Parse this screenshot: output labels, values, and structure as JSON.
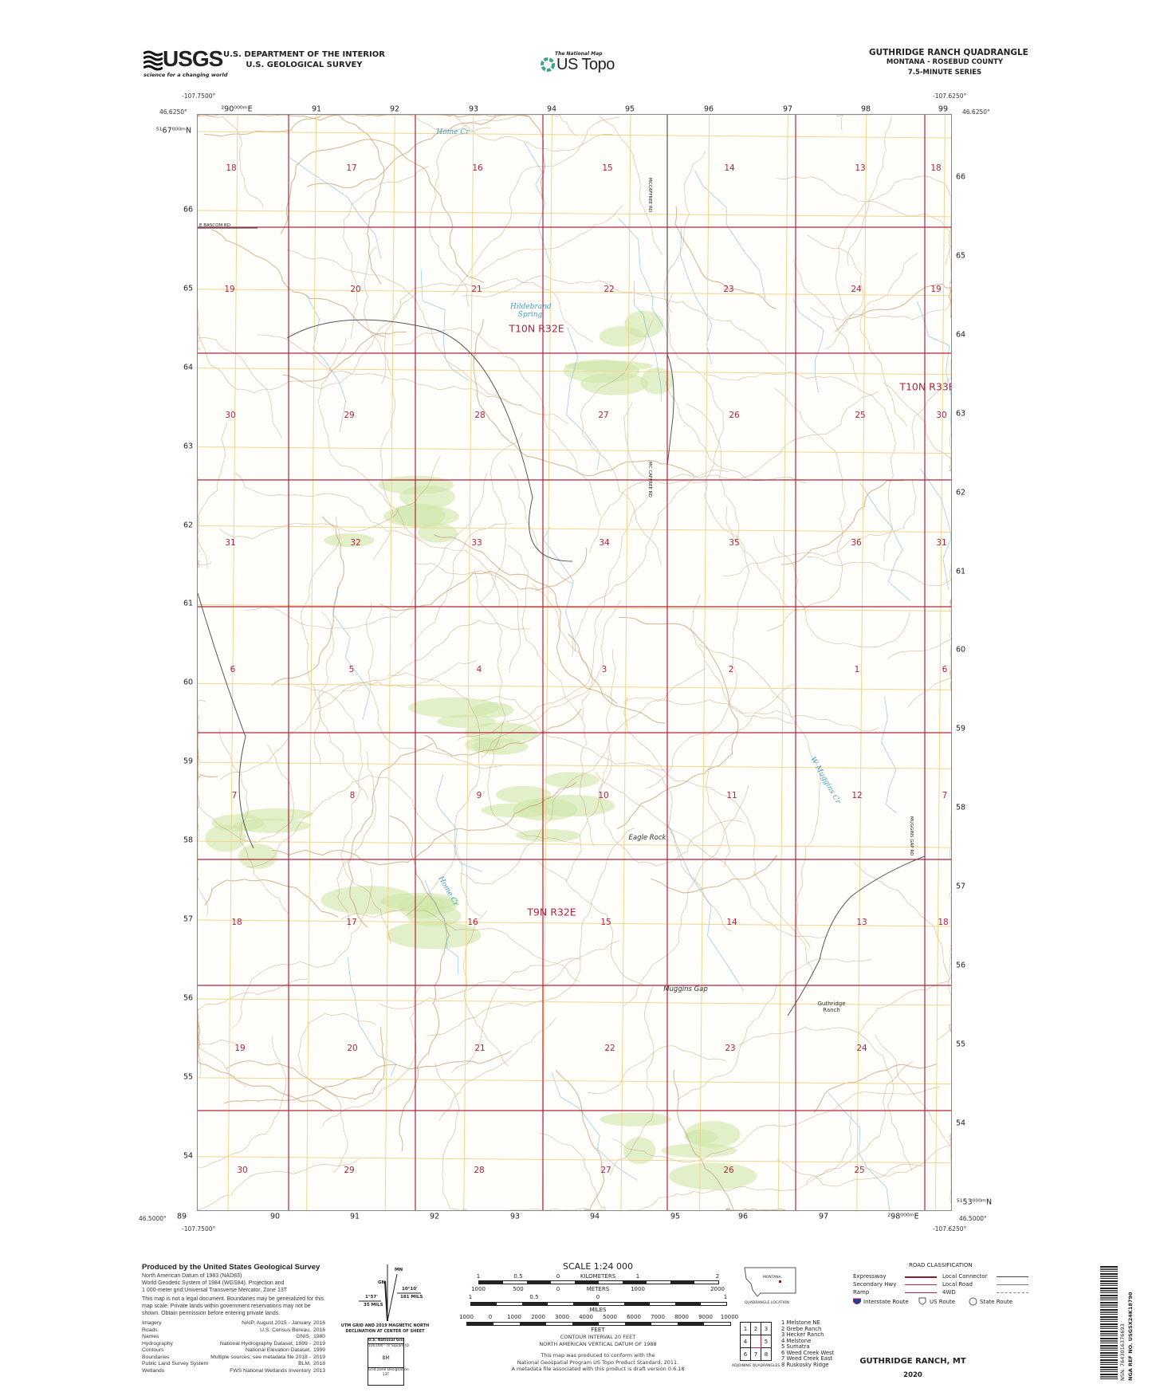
{
  "header": {
    "usgs_logo": "USGS",
    "usgs_tagline": "science for a changing world",
    "department": "U.S. DEPARTMENT OF THE INTERIOR",
    "survey": "U.S. GEOLOGICAL SURVEY",
    "national_map": "The National Map",
    "us_topo": "US Topo",
    "quadrangle_title": "GUTHRIDGE RANCH QUADRANGLE",
    "state_county": "MONTANA - ROSEBUD COUNTY",
    "series": "7.5-MINUTE SERIES"
  },
  "corners": {
    "nw_lon": "-107.7500°",
    "nw_lat": "46.6250°",
    "ne_lon": "-107.6250°",
    "ne_lat": "46.6250°",
    "sw_lon": "-107.7500°",
    "sw_lat": "46.5000°",
    "se_lon": "-107.6250°",
    "se_lat": "46.5000°"
  },
  "grid": {
    "top_eastings": [
      "²90⁰⁰⁰ᵐE",
      "91",
      "92",
      "93",
      "94",
      "95",
      "96",
      "97",
      "98",
      "99"
    ],
    "bottom_eastings": [
      "89",
      "90",
      "91",
      "92",
      "93",
      "94",
      "95",
      "96",
      "97",
      "²98⁰⁰⁰ᵐE"
    ],
    "left_northings": [
      "⁵¹67⁰⁰⁰ᵐN",
      "66",
      "65",
      "64",
      "63",
      "62",
      "61",
      "60",
      "59",
      "58",
      "57",
      "56",
      "55",
      "54"
    ],
    "right_northings": [
      "66",
      "65",
      "64",
      "63",
      "62",
      "61",
      "60",
      "59",
      "58",
      "57",
      "56",
      "55",
      "54",
      "⁵¹53⁰⁰⁰ᵐN"
    ]
  },
  "map": {
    "sections": [
      "18",
      "17",
      "16",
      "15",
      "14",
      "13",
      "18",
      "19",
      "20",
      "21",
      "22",
      "23",
      "24",
      "19",
      "30",
      "29",
      "28",
      "27",
      "26",
      "25",
      "30",
      "31",
      "32",
      "33",
      "34",
      "35",
      "36",
      "31",
      "6",
      "5",
      "4",
      "3",
      "2",
      "1",
      "6",
      "7",
      "8",
      "9",
      "10",
      "11",
      "12",
      "7",
      "18",
      "17",
      "16",
      "15",
      "14",
      "13",
      "18",
      "19",
      "20",
      "21",
      "22",
      "23",
      "24",
      "30",
      "29",
      "28",
      "27",
      "26",
      "25"
    ],
    "townships": [
      "T10N R32E",
      "T10N R33E",
      "T9N R32E"
    ],
    "places": [
      "Eagle Rock",
      "Muggins Gap",
      "Guthridge Ranch"
    ],
    "water": [
      "Home Cr",
      "Hildebrand Spring",
      "W Muggins Cr",
      "Home Cr"
    ],
    "roads": [
      "E BASCOM RD",
      "MCCAFFREE RD",
      "MC CAFFREE RD",
      "MUGGINS GAP RD"
    ],
    "colors": {
      "section_line": "#b0243e",
      "utm_grid": "#f0d58a",
      "contour": "#c9a27a",
      "water": "#5fb4d8",
      "vegetation": "#cfe6a8"
    }
  },
  "footer": {
    "produced_by": "Produced by the United States Geological Survey",
    "datum_lines": [
      "North American Datum of 1983 (NAD83)",
      "World Geodetic System of 1984 (WGS84).  Projection and",
      "1 000-meter grid:Universal Transverse Mercator, Zone 13T"
    ],
    "disclaimer": "This map is not a legal document. Boundaries may be generalized for this map scale. Private lands within government reservations may not be shown. Obtain permission before entering private lands.",
    "sources": [
      {
        "item": "Imagery",
        "source": "NAIP, August 2015 - January",
        "year": "2016"
      },
      {
        "item": "Roads",
        "source": "U.S. Census Bureau,",
        "year": "2016"
      },
      {
        "item": "Names",
        "source": "GNIS,",
        "year": "1980"
      },
      {
        "item": "Hydrography",
        "source": "National Hydrography Dataset, 1899 -",
        "year": "2019"
      },
      {
        "item": "Contours",
        "source": "National Elevation Dataset,",
        "year": "1999"
      },
      {
        "item": "Boundaries",
        "source": "Multiple sources; see metadata file 2018 -",
        "year": "2019"
      },
      {
        "item": "Public Land Survey System",
        "source": "BLM,",
        "year": "2018"
      },
      {
        "item": "Wetlands",
        "source": "FWS National Wetlands Inventory",
        "year": "2013"
      }
    ],
    "declination": {
      "mn": "MN",
      "gn": "GN",
      "left_angle": "1°57'",
      "left_mils": "35 MILS",
      "right_angle": "10°10'",
      "right_mils": "181 MILS",
      "caption1": "UTM GRID AND 2019 MAGNETIC NORTH",
      "caption2": "DECLINATION AT CENTER OF SHEET",
      "grid_title": "U.S. National Grid",
      "grid_sub": "100,000 - m Square ID",
      "grid_id": "BM",
      "zone_label": "Grid Zone Designation",
      "zone": "13T"
    },
    "scale": {
      "title": "SCALE 1:24 000",
      "km_labels": [
        "1",
        "0.5",
        "0",
        "1",
        "2"
      ],
      "km_unit": "KILOMETERS",
      "m_labels": [
        "1000",
        "500",
        "0",
        "1000",
        "2000"
      ],
      "m_unit": "METERS",
      "mi_labels": [
        "1",
        "0.5",
        "0",
        "1"
      ],
      "mi_unit": "MILES",
      "ft_labels": [
        "1000",
        "0",
        "1000",
        "2000",
        "3000",
        "4000",
        "5000",
        "6000",
        "7000",
        "8000",
        "9000",
        "10000"
      ],
      "ft_unit": "FEET",
      "contour_interval": "CONTOUR INTERVAL 20 FEET",
      "vertical_datum": "NORTH AMERICAN VERTICAL DATUM OF 1988",
      "conform1": "This map was produced to conform with the",
      "conform2": "National Geospatial Program US Topo Product Standard, 2011.",
      "conform3": "A metadata file associated with this product is draft version 0.6.18"
    },
    "location": {
      "state": "MONTANA",
      "caption": "QUADRANGLE LOCATION"
    },
    "adjoining": {
      "cells": [
        "1",
        "2",
        "3",
        "4",
        "",
        "5",
        "6",
        "7",
        "8"
      ],
      "names": [
        "1 Melstone NE",
        "2 Grebe Ranch",
        "3 Hecker Ranch",
        "4 Melstone",
        "5 Sumatra",
        "6 Weed Creek West",
        "7 Weed Creek East",
        "8 Ruskosky Ridge"
      ],
      "caption": "ADJOINING QUADRANGLES"
    },
    "roads": {
      "title": "ROAD CLASSIFICATION",
      "expressway": "Expressway",
      "secondary": "Secondary Hwy",
      "ramp": "Ramp",
      "local_connector": "Local Connector",
      "local_road": "Local Road",
      "fourwd": "4WD",
      "interstate": "Interstate Route",
      "us": "US Route",
      "state": "State Route"
    },
    "map_name": "GUTHRIDGE RANCH, MT",
    "year": "2020",
    "barcode_nsn": "NSN.  7643016376693",
    "barcode_nga": "NGA REF NO. USGSX24K18790"
  }
}
